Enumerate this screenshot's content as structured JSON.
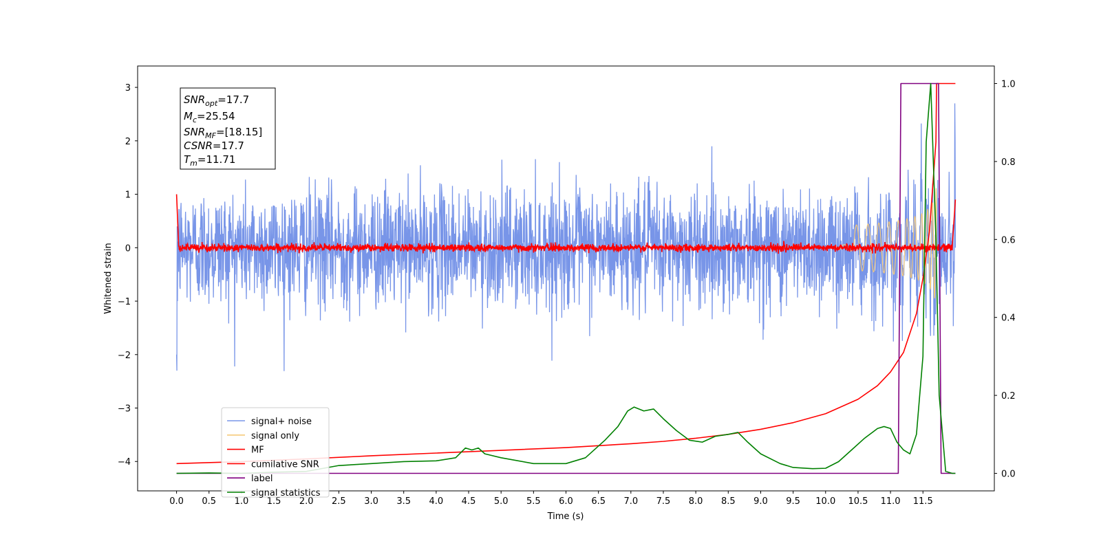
{
  "chart_data": {
    "type": "line",
    "xlabel": "Time (s)",
    "ylabel": "Whitened strain",
    "xlim": [
      -0.6,
      12.6
    ],
    "ylim": [
      -4.55,
      3.4
    ],
    "y2lim": [
      -0.045,
      1.045
    ],
    "x_ticks": [
      "0.0",
      "0.5",
      "1.0",
      "1.5",
      "2.0",
      "2.5",
      "3.0",
      "3.5",
      "4.0",
      "4.5",
      "5.0",
      "5.5",
      "6.0",
      "6.5",
      "7.0",
      "7.5",
      "8.0",
      "8.5",
      "9.0",
      "9.5",
      "10.0",
      "10.5",
      "11.0",
      "11.5"
    ],
    "y_ticks": [
      "3",
      "2",
      "1",
      "0",
      "−1",
      "−2",
      "−3",
      "−4"
    ],
    "y2_ticks": [
      "1.0",
      "0.8",
      "0.6",
      "0.4",
      "0.2",
      "0.0"
    ],
    "grid": false,
    "legend_position": "lower-left",
    "annotation": [
      {
        "base": "SNR",
        "sub": "opt",
        "value": "=17.7"
      },
      {
        "base": "M",
        "sub": "c",
        "value": "=25.54"
      },
      {
        "base": "SNR",
        "sub": "MF",
        "value": "=[18.15]"
      },
      {
        "base": "CSNR",
        "sub": "",
        "value": "=17.7"
      },
      {
        "base": "T",
        "sub": "m",
        "value": "=11.71"
      }
    ],
    "series": [
      {
        "name": "signal+ noise",
        "color": "#7895e8",
        "axis": "left",
        "noise_std": 0.55,
        "x_range": [
          0.0,
          12.0
        ]
      },
      {
        "name": "signal only",
        "color": "#f5c97a",
        "axis": "left",
        "chirp_end": 11.71,
        "peak_amplitude": 1.2
      },
      {
        "name": "MF",
        "color": "#ff0000",
        "axis": "left",
        "noise_std": 0.035,
        "x_range": [
          0.0,
          12.0
        ]
      },
      {
        "name": "cumilative SNR",
        "color": "#ff0000",
        "axis": "right",
        "x": [
          0.0,
          1.0,
          2.0,
          3.0,
          4.0,
          5.0,
          6.0,
          7.0,
          7.5,
          8.0,
          8.5,
          9.0,
          9.5,
          10.0,
          10.5,
          10.8,
          11.0,
          11.2,
          11.4,
          11.5,
          11.6,
          11.7,
          11.71,
          11.8,
          12.0
        ],
        "values": [
          0.025,
          0.03,
          0.037,
          0.045,
          0.052,
          0.059,
          0.066,
          0.076,
          0.082,
          0.09,
          0.1,
          0.113,
          0.13,
          0.153,
          0.19,
          0.225,
          0.26,
          0.31,
          0.41,
          0.5,
          0.62,
          0.85,
          1.0,
          1.0,
          1.0
        ]
      },
      {
        "name": "label",
        "color": "#800080",
        "axis": "right",
        "x": [
          0.0,
          11.12,
          11.16,
          11.74,
          11.78,
          12.0
        ],
        "values": [
          0.0,
          0.0,
          1.0,
          1.0,
          0.0,
          0.0
        ]
      },
      {
        "name": "signal statistics",
        "color": "#008000",
        "axis": "right",
        "x": [
          0.0,
          0.5,
          1.0,
          1.5,
          2.0,
          2.5,
          3.0,
          3.5,
          4.0,
          4.3,
          4.45,
          4.55,
          4.65,
          4.75,
          5.0,
          5.5,
          6.0,
          6.3,
          6.6,
          6.8,
          6.95,
          7.05,
          7.2,
          7.35,
          7.5,
          7.7,
          7.9,
          8.1,
          8.3,
          8.5,
          8.65,
          8.8,
          9.0,
          9.3,
          9.5,
          9.8,
          10.0,
          10.2,
          10.4,
          10.6,
          10.8,
          10.9,
          11.0,
          11.1,
          11.2,
          11.3,
          11.4,
          11.5,
          11.55,
          11.62,
          11.7,
          11.75,
          11.85,
          11.95,
          12.0
        ],
        "values": [
          0.0,
          0.001,
          0.0,
          0.003,
          0.005,
          0.02,
          0.025,
          0.03,
          0.032,
          0.04,
          0.065,
          0.06,
          0.065,
          0.05,
          0.04,
          0.025,
          0.025,
          0.04,
          0.085,
          0.12,
          0.16,
          0.17,
          0.16,
          0.165,
          0.14,
          0.11,
          0.085,
          0.08,
          0.095,
          0.1,
          0.105,
          0.08,
          0.05,
          0.025,
          0.015,
          0.012,
          0.013,
          0.03,
          0.06,
          0.09,
          0.115,
          0.12,
          0.115,
          0.08,
          0.06,
          0.05,
          0.1,
          0.3,
          0.85,
          1.0,
          0.6,
          0.2,
          0.005,
          0.0,
          0.0
        ]
      }
    ]
  }
}
